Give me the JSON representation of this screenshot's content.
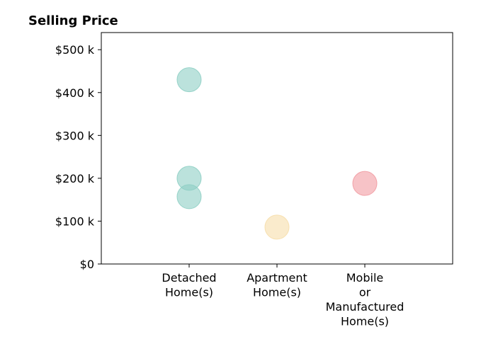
{
  "chart_data": {
    "type": "scatter",
    "title": "Selling Price",
    "xlabel": "",
    "ylabel": "",
    "categories": [
      [
        "Detached",
        "Home(s)"
      ],
      [
        "Apartment",
        "Home(s)"
      ],
      [
        "Mobile",
        "or",
        "Manufactured",
        "Home(s)"
      ]
    ],
    "ylim": [
      0,
      540000
    ],
    "yticks": [
      {
        "value": 0,
        "label": "$0"
      },
      {
        "value": 100000,
        "label": "$100 k"
      },
      {
        "value": 200000,
        "label": "$200 k"
      },
      {
        "value": 300000,
        "label": "$300 k"
      },
      {
        "value": 400000,
        "label": "$400 k"
      },
      {
        "value": 500000,
        "label": "$500 k"
      }
    ],
    "grid": false,
    "points": [
      {
        "category": 0,
        "y": 430000,
        "color": "#8ecfc4"
      },
      {
        "category": 0,
        "y": 200000,
        "color": "#8ecfc4"
      },
      {
        "category": 0,
        "y": 157000,
        "color": "#8ecfc4"
      },
      {
        "category": 1,
        "y": 86000,
        "color": "#f6deaa"
      },
      {
        "category": 2,
        "y": 188000,
        "color": "#f19ba2"
      }
    ]
  }
}
